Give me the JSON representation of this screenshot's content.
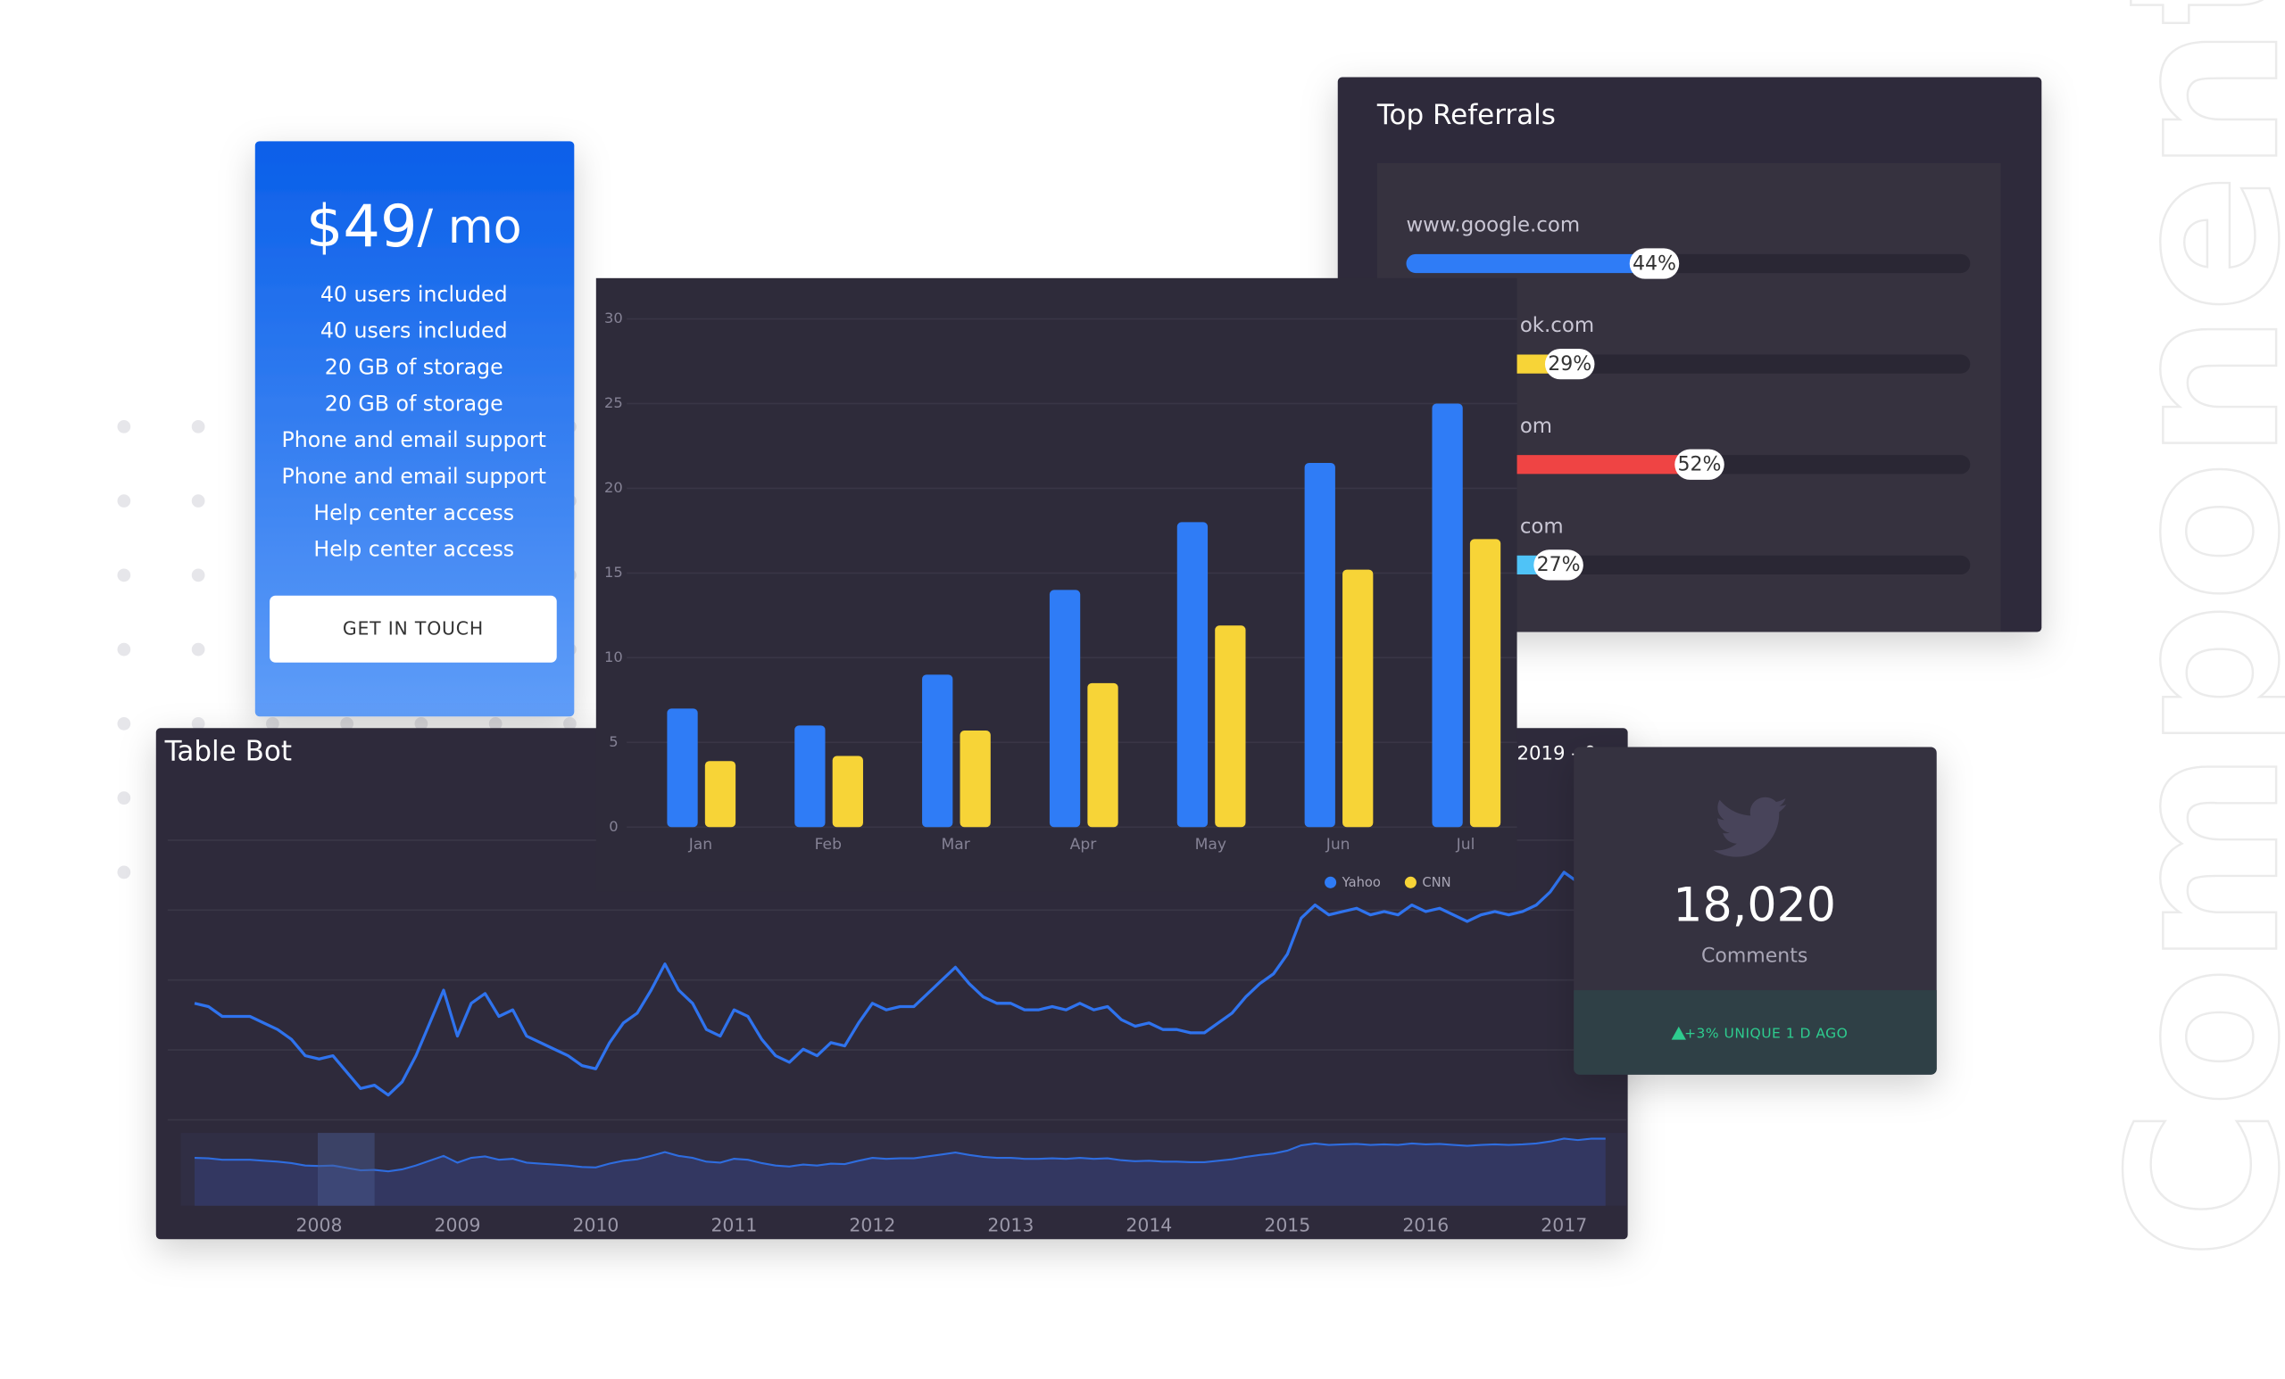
{
  "watermark": "Components",
  "pricing": {
    "price": "$49",
    "period": "/ mo",
    "features": [
      "40 users included",
      "40 users included",
      "20 GB of storage",
      "20 GB of storage",
      "Phone and email support",
      "Phone and email support",
      "Help center access",
      "Help center access"
    ],
    "button": "GET IN TOUCH"
  },
  "referrals": {
    "title": "Top Referrals",
    "items": [
      {
        "site": "www.google.com",
        "percent": 44,
        "label": "44%",
        "color": "#2f7cf6"
      },
      {
        "site": "ok.com",
        "percent": 29,
        "label": "29%",
        "color": "#f7d437"
      },
      {
        "site": "om",
        "percent": 52,
        "label": "52%",
        "color": "#ef4444"
      },
      {
        "site": "com",
        "percent": 27,
        "label": "27%",
        "color": "#4fc3f7"
      }
    ]
  },
  "stats": {
    "count": "18,020",
    "caption": "Comments",
    "change": "+3% UNIQUE 1 D AGO"
  },
  "chart_data": [
    {
      "type": "bar",
      "categories": [
        "Jan",
        "Feb",
        "Mar",
        "Apr",
        "May",
        "Jun",
        "Jul"
      ],
      "series": [
        {
          "name": "Yahoo",
          "color": "#2f7cf6",
          "values": [
            7,
            6,
            9,
            14,
            18,
            21.5,
            25
          ]
        },
        {
          "name": "CNN",
          "color": "#f7d437",
          "values": [
            3.9,
            4.2,
            5.7,
            8.5,
            11.9,
            15.2,
            17
          ]
        }
      ],
      "ylim": [
        0,
        30
      ],
      "yticks": [
        0,
        5,
        10,
        15,
        20,
        25,
        30
      ],
      "grid": true,
      "legend": "bottom-right"
    },
    {
      "type": "line",
      "title": "Table Bot",
      "subtitle": "2019 - 0",
      "x": [
        2007.1,
        2007.2,
        2007.3,
        2007.4,
        2007.5,
        2007.6,
        2007.7,
        2007.8,
        2007.9,
        2008.0,
        2008.1,
        2008.2,
        2008.3,
        2008.4,
        2008.5,
        2008.6,
        2008.7,
        2008.8,
        2008.9,
        2009.0,
        2009.1,
        2009.2,
        2009.3,
        2009.4,
        2009.5,
        2009.6,
        2009.7,
        2009.8,
        2009.9,
        2010.0,
        2010.1,
        2010.2,
        2010.3,
        2010.4,
        2010.5,
        2010.6,
        2010.7,
        2010.8,
        2010.9,
        2011.0,
        2011.1,
        2011.2,
        2011.3,
        2011.4,
        2011.5,
        2011.6,
        2011.7,
        2011.8,
        2011.9,
        2012.0,
        2012.1,
        2012.2,
        2012.3,
        2012.4,
        2012.5,
        2012.6,
        2012.7,
        2012.8,
        2012.9,
        2013.0,
        2013.1,
        2013.2,
        2013.3,
        2013.4,
        2013.5,
        2013.6,
        2013.7,
        2013.8,
        2013.9,
        2014.0,
        2014.1,
        2014.2,
        2014.3,
        2014.4,
        2014.5,
        2014.6,
        2014.7,
        2014.8,
        2014.9,
        2015.0,
        2015.1,
        2015.2,
        2015.3,
        2015.4,
        2015.5,
        2015.6,
        2015.7,
        2015.8,
        2015.9,
        2016.0,
        2016.1,
        2016.2,
        2016.3,
        2016.4,
        2016.5,
        2016.6,
        2016.7,
        2016.8,
        2016.9,
        2017.0,
        2017.1,
        2017.2,
        2017.3
      ],
      "series": [
        {
          "color": "#2f73ee",
          "values": [
            36,
            35,
            32,
            32,
            32,
            30,
            28,
            25,
            20,
            19,
            20,
            15,
            10,
            11,
            8,
            12,
            20,
            30,
            40,
            26,
            36,
            39,
            32,
            34,
            26,
            24,
            22,
            20,
            17,
            16,
            24,
            30,
            33,
            40,
            48,
            40,
            36,
            28,
            26,
            34,
            32,
            25,
            20,
            18,
            22,
            20,
            24,
            23,
            30,
            36,
            34,
            35,
            35,
            39,
            43,
            47,
            42,
            38,
            36,
            36,
            34,
            34,
            35,
            34,
            36,
            34,
            35,
            31,
            29,
            30,
            28,
            28,
            27,
            27,
            30,
            33,
            38,
            42,
            45,
            51,
            62,
            66,
            63,
            64,
            65,
            63,
            64,
            63,
            66,
            64,
            65,
            63,
            61,
            63,
            64,
            63,
            64,
            66,
            70,
            76,
            73,
            76,
            76
          ]
        }
      ],
      "xlim": [
        2007,
        2017.45
      ],
      "xticks": [
        2008,
        2009,
        2010,
        2011,
        2012,
        2013,
        2014,
        2015,
        2016,
        2017
      ],
      "ylim": [
        0,
        100
      ]
    }
  ]
}
